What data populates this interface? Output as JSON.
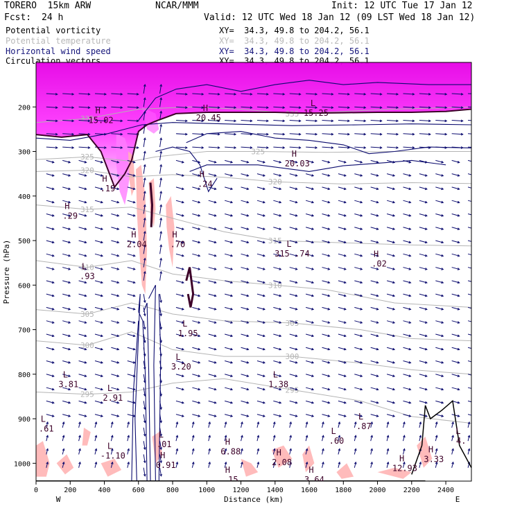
{
  "header": {
    "model": "TORERO  15km ARW",
    "org": "NCAR/MMM",
    "init": "Init: 12 UTC Tue 17 Jan 12",
    "fcst_label": "Fcst:",
    "fcst_value": "24 h",
    "valid": "Valid: 12 UTC Wed 18 Jan 12 (09 LST Wed 18 Jan 12)"
  },
  "fields": [
    {
      "name": "Potential vorticity",
      "xy": "XY=  34.3, 49.8 to 204.2, 56.1",
      "color": "#000000"
    },
    {
      "name": "Potential temperature",
      "xy": "XY=  34.3, 49.8 to 204.2, 56.1",
      "color": "#b8b8b8"
    },
    {
      "name": "Horizontal wind speed",
      "xy": "XY=  34.3, 49.8 to 204.2, 56.1",
      "color": "#14147a"
    },
    {
      "name": "Circulation vectors",
      "xy": "XY=  34.3, 49.8 to 204.2, 56.1",
      "color": "#000000"
    }
  ],
  "colors": {
    "pv_magenta": "#ff00ff",
    "pv_pink": "#ffb4b4",
    "theta": "#b4b4b4",
    "wind": "#0a0a6e",
    "pv_contour": "#3c0028"
  },
  "chart_data": {
    "type": "cross-section",
    "xlabel": "Distance (km)",
    "ylabel": "Pressure (hPa)",
    "x_ticks": [
      "0",
      "200",
      "400",
      "600",
      "800",
      "1000",
      "1200",
      "1400",
      "1600",
      "1800",
      "2000",
      "2200",
      "2400"
    ],
    "x_tick_values": [
      0,
      200,
      400,
      600,
      800,
      1000,
      1200,
      1400,
      1600,
      1800,
      2000,
      2200,
      2400
    ],
    "xlim": [
      0,
      2550
    ],
    "y_ticks": [
      "200",
      "300",
      "400",
      "500",
      "600",
      "700",
      "800",
      "900",
      "1000"
    ],
    "y_tick_values": [
      200,
      300,
      400,
      500,
      600,
      700,
      800,
      900,
      1000
    ],
    "ylim": [
      1040,
      100
    ],
    "end_labels": {
      "left": "W",
      "right": "E"
    },
    "theta_contours": [
      {
        "label": "335",
        "points": [
          [
            0,
            235
          ],
          [
            300,
            226
          ],
          [
            600,
            205
          ],
          [
            900,
            200
          ],
          [
            1200,
            205
          ],
          [
            1500,
            215
          ],
          [
            1800,
            210
          ],
          [
            2100,
            205
          ],
          [
            2550,
            200
          ]
        ]
      },
      {
        "label": "325",
        "points": [
          [
            0,
            318
          ],
          [
            300,
            312
          ],
          [
            560,
            322
          ],
          [
            700,
            312
          ],
          [
            1000,
            300
          ],
          [
            1300,
            300
          ],
          [
            1700,
            302
          ],
          [
            2100,
            300
          ],
          [
            2550,
            300
          ]
        ]
      },
      {
        "label": "320",
        "points": [
          [
            0,
            345
          ],
          [
            300,
            342
          ],
          [
            560,
            357
          ],
          [
            800,
            352
          ],
          [
            1100,
            358
          ],
          [
            1400,
            368
          ],
          [
            1800,
            373
          ],
          [
            2200,
            370
          ],
          [
            2550,
            372
          ]
        ]
      },
      {
        "label": "315",
        "points": [
          [
            0,
            420
          ],
          [
            300,
            430
          ],
          [
            560,
            425
          ],
          [
            800,
            450
          ],
          [
            1100,
            480
          ],
          [
            1400,
            500
          ],
          [
            1800,
            505
          ],
          [
            2200,
            510
          ],
          [
            2550,
            512
          ]
        ]
      },
      {
        "label": "310",
        "points": [
          [
            0,
            545
          ],
          [
            300,
            560
          ],
          [
            560,
            545
          ],
          [
            800,
            575
          ],
          [
            1100,
            590
          ],
          [
            1400,
            600
          ],
          [
            1700,
            610
          ],
          [
            2100,
            640
          ],
          [
            2550,
            650
          ]
        ]
      },
      {
        "label": "305",
        "points": [
          [
            0,
            655
          ],
          [
            300,
            665
          ],
          [
            560,
            640
          ],
          [
            800,
            665
          ],
          [
            1100,
            680
          ],
          [
            1500,
            685
          ],
          [
            1900,
            700
          ],
          [
            2200,
            720
          ],
          [
            2550,
            725
          ]
        ]
      },
      {
        "label": "300",
        "points": [
          [
            0,
            725
          ],
          [
            300,
            735
          ],
          [
            560,
            705
          ],
          [
            800,
            745
          ],
          [
            1100,
            760
          ],
          [
            1500,
            760
          ],
          [
            1900,
            775
          ],
          [
            2200,
            790
          ],
          [
            2550,
            800
          ]
        ]
      },
      {
        "label": "295",
        "points": [
          [
            0,
            840
          ],
          [
            300,
            845
          ],
          [
            560,
            840
          ],
          [
            800,
            820
          ],
          [
            1100,
            810
          ],
          [
            1500,
            835
          ],
          [
            1900,
            860
          ],
          [
            2200,
            895
          ],
          [
            2550,
            910
          ]
        ]
      }
    ],
    "pv_extrema_labels": [
      {
        "kind": "H",
        "value": "15.02",
        "x": 380,
        "p": 233
      },
      {
        "kind": "H",
        "value": ".19",
        "x": 420,
        "p": 386
      },
      {
        "kind": "H",
        "value": ".29",
        "x": 200,
        "p": 448
      },
      {
        "kind": "L",
        "value": ".93",
        "x": 300,
        "p": 583
      },
      {
        "kind": "H",
        "value": "2.04",
        "x": 590,
        "p": 512
      },
      {
        "kind": "H",
        "value": ".70",
        "x": 830,
        "p": 512
      },
      {
        "kind": "H",
        "value": ".24",
        "x": 990,
        "p": 376
      },
      {
        "kind": "H",
        "value": "20.45",
        "x": 1010,
        "p": 228
      },
      {
        "kind": "H",
        "value": "20.03",
        "x": 1530,
        "p": 330
      },
      {
        "kind": "L",
        "value": "15.25",
        "x": 1640,
        "p": 217
      },
      {
        "kind": "L",
        "value": "315 .74",
        "x": 1500,
        "p": 533
      },
      {
        "kind": "H",
        "value": ".02",
        "x": 2010,
        "p": 555
      },
      {
        "kind": "L",
        "value": "1.95",
        "x": 890,
        "p": 712
      },
      {
        "kind": "L",
        "value": "3.20",
        "x": 850,
        "p": 786
      },
      {
        "kind": "L",
        "value": "3.81",
        "x": 190,
        "p": 826
      },
      {
        "kind": "L",
        "value": "2.91",
        "x": 450,
        "p": 856
      },
      {
        "kind": "L",
        "value": "1.38",
        "x": 1420,
        "p": 826
      },
      {
        "kind": "L",
        "value": ".61",
        "x": 60,
        "p": 926
      },
      {
        "kind": "L",
        "value": "-1.10",
        "x": 450,
        "p": 986
      },
      {
        "kind": "L",
        "value": ".01",
        "x": 750,
        "p": 961
      },
      {
        "kind": "H",
        "value": "0.91",
        "x": 760,
        "p": 1007
      },
      {
        "kind": "H",
        "value": "6.88",
        "x": 1140,
        "p": 977
      },
      {
        "kind": "H",
        "value": ".15",
        "x": 1140,
        "p": 1040
      },
      {
        "kind": "H",
        "value": "2.08",
        "x": 1440,
        "p": 1001
      },
      {
        "kind": "L",
        "value": ".60",
        "x": 1760,
        "p": 953
      },
      {
        "kind": "L",
        "value": ".87",
        "x": 1920,
        "p": 920
      },
      {
        "kind": "H",
        "value": "12.93",
        "x": 2160,
        "p": 1014
      },
      {
        "kind": "H",
        "value": "3.33",
        "x": 2330,
        "p": 994
      },
      {
        "kind": "H",
        "value": "3.64",
        "x": 1630,
        "p": 1040
      },
      {
        "kind": "L",
        "value": "4.",
        "x": 2490,
        "p": 953
      }
    ]
  }
}
